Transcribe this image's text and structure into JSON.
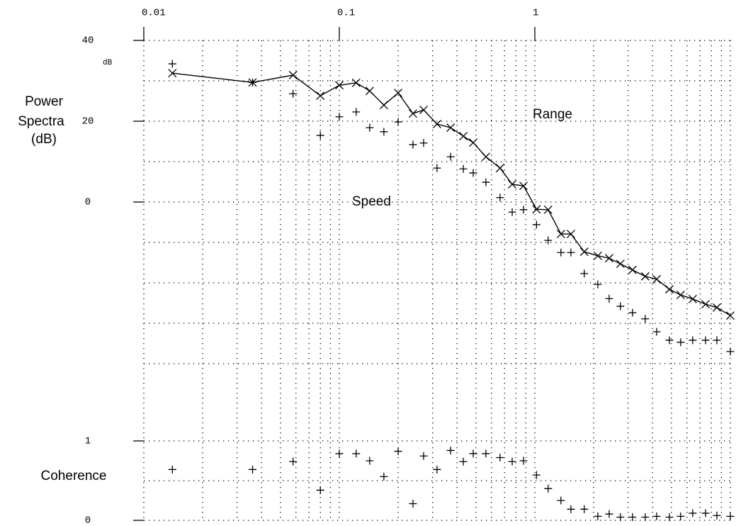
{
  "chart_data": [
    {
      "type": "line",
      "ylabel": [
        "Power",
        "Spectra",
        "(dB)"
      ],
      "y_unit": "dB",
      "annotations": [
        "Range",
        "Speed"
      ],
      "log_x": true,
      "xlim": [
        0.01,
        10
      ],
      "xticks": [
        0.01,
        0.1,
        1
      ],
      "xgrid": [
        0.01,
        0.02,
        0.03,
        0.04,
        0.05,
        0.06,
        0.07,
        0.08,
        0.09,
        0.1,
        0.2,
        0.3,
        0.4,
        0.5,
        0.6,
        0.7,
        0.8,
        0.9,
        1,
        2,
        3,
        4,
        5,
        6,
        7,
        8,
        9,
        10
      ],
      "ylim": [
        -40,
        40
      ],
      "yticks": [
        0,
        20,
        40
      ],
      "ygrid": [
        -40,
        -30,
        -20,
        -10,
        0,
        10,
        20,
        30,
        40
      ],
      "x": [
        0.014,
        0.036,
        0.058,
        0.08,
        0.1,
        0.122,
        0.143,
        0.169,
        0.2,
        0.238,
        0.27,
        0.316,
        0.371,
        0.431,
        0.484,
        0.562,
        0.664,
        0.766,
        0.875,
        1.02,
        1.17,
        1.36,
        1.53,
        1.79,
        2.1,
        2.4,
        2.74,
        3.16,
        3.67,
        4.2,
        4.88,
        5.57,
        6.42,
        7.47,
        8.53,
        10
      ],
      "series": [
        {
          "name": "Range",
          "color": "#000000",
          "marker": "x",
          "line": true,
          "values": [
            31.9,
            29.6,
            31.4,
            26.3,
            28.9,
            29.5,
            27.5,
            24.0,
            27.0,
            21.9,
            22.8,
            19.3,
            18.4,
            16.3,
            14.7,
            11.2,
            8.4,
            4.4,
            4.0,
            -1.8,
            -1.9,
            -7.9,
            -7.9,
            -12.3,
            -13.3,
            -13.9,
            -15.3,
            -16.8,
            -18.4,
            -19.1,
            -21.6,
            -23.0,
            -24.0,
            -25.3,
            -26.1,
            -28.1
          ]
        },
        {
          "name": "Speed",
          "color": "#000000",
          "marker": "+",
          "line": false,
          "values": [
            34.2,
            29.6,
            26.8,
            16.5,
            21.1,
            22.3,
            18.4,
            17.4,
            19.8,
            14.2,
            14.6,
            8.4,
            11.2,
            8.2,
            7.2,
            4.9,
            1.1,
            -2.5,
            -1.9,
            -5.6,
            -9.5,
            -12.5,
            -12.5,
            -17.7,
            -20.4,
            -23.9,
            -25.8,
            -27.4,
            -28.9,
            -32.1,
            -34.2,
            -34.7,
            -34.2,
            -34.2,
            -34.2,
            -37.0
          ]
        }
      ]
    },
    {
      "type": "scatter",
      "ylabel": "Coherence",
      "marker": "+",
      "color": "#000000",
      "ylim": [
        0,
        1
      ],
      "yticks": [
        0,
        1
      ],
      "ygrid": [
        0,
        0.5,
        1
      ],
      "x": [
        0.014,
        0.036,
        0.058,
        0.08,
        0.1,
        0.122,
        0.143,
        0.169,
        0.2,
        0.238,
        0.27,
        0.316,
        0.371,
        0.431,
        0.484,
        0.562,
        0.664,
        0.766,
        0.875,
        1.02,
        1.17,
        1.36,
        1.53,
        1.79,
        2.1,
        2.4,
        2.74,
        3.16,
        3.67,
        4.2,
        4.88,
        5.57,
        6.42,
        7.47,
        8.53,
        10
      ],
      "values": [
        0.64,
        0.64,
        0.74,
        0.38,
        0.84,
        0.84,
        0.75,
        0.55,
        0.87,
        0.21,
        0.81,
        0.64,
        0.88,
        0.74,
        0.84,
        0.84,
        0.79,
        0.74,
        0.75,
        0.57,
        0.4,
        0.25,
        0.14,
        0.14,
        0.05,
        0.08,
        0.04,
        0.04,
        0.04,
        0.05,
        0.04,
        0.05,
        0.09,
        0.09,
        0.06,
        0.05
      ]
    }
  ]
}
